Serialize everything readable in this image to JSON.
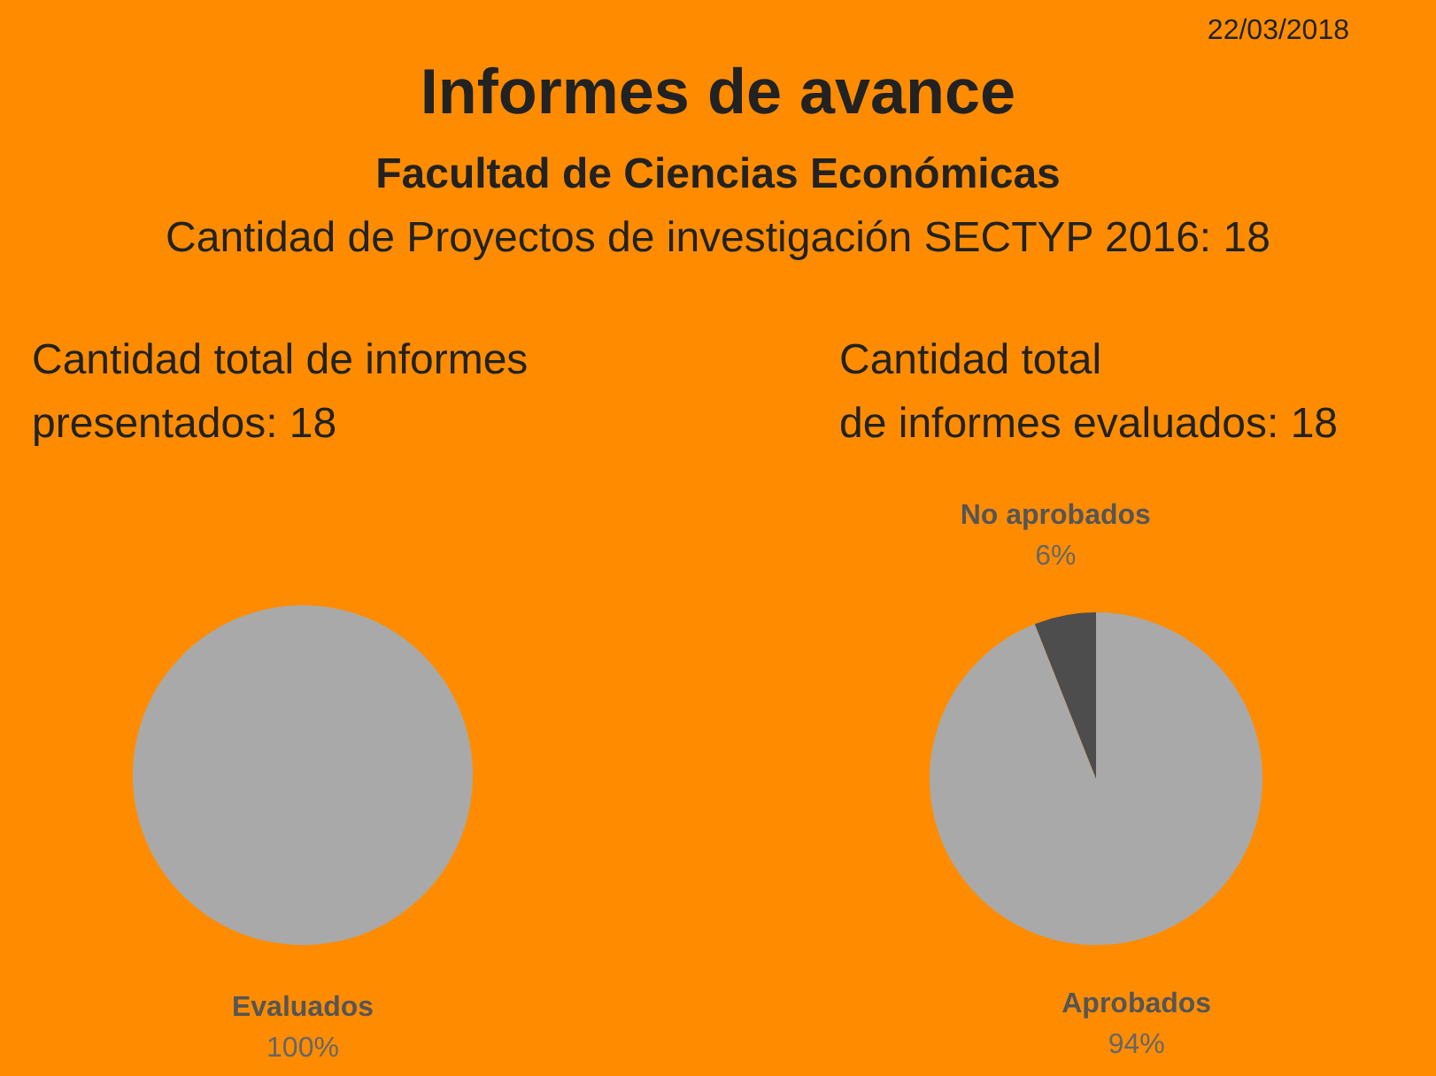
{
  "chart_data": [
    {
      "type": "other",
      "title": "Informes de avance",
      "subtitle": "Facultad de Ciencias Económicas",
      "annotations": [
        "22/03/2018",
        "Cantidad de Proyectos de investigación SECTYP 2016: 18"
      ]
    },
    {
      "type": "pie",
      "title": "Cantidad total de informes\npresentados: 18",
      "categories": [
        "Evaluados"
      ],
      "values": [
        100
      ],
      "colors": [
        "#a9a9a9"
      ],
      "value_labels": [
        "100%"
      ]
    },
    {
      "type": "pie",
      "title": "Cantidad total\nde informes evaluados: 18",
      "categories": [
        "Aprobados",
        "No aprobados"
      ],
      "values": [
        94,
        6
      ],
      "colors": [
        "#a9a9a9",
        "#4d4d4d"
      ],
      "value_labels": [
        "94%",
        "6%"
      ]
    }
  ]
}
